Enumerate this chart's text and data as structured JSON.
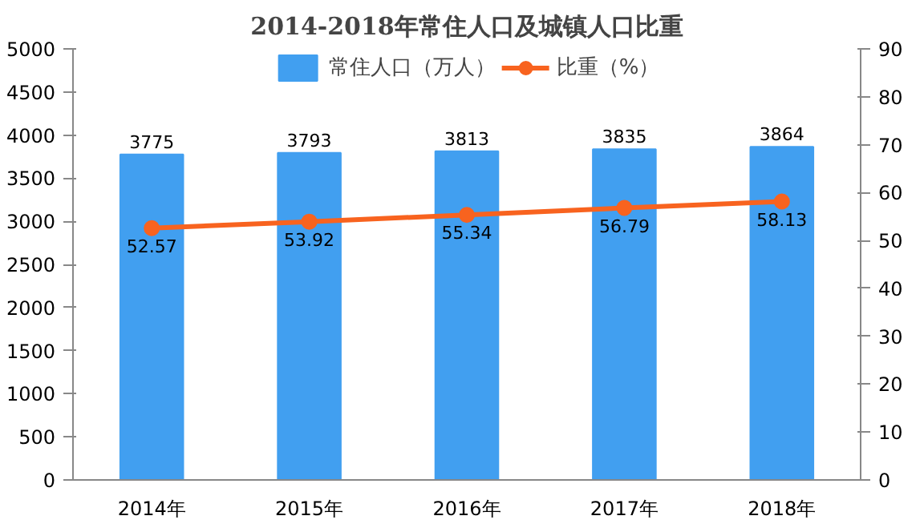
{
  "chart_data": {
    "type": "bar",
    "title": "2014-2018年常住人口及城镇人口比重",
    "categories": [
      "2014年",
      "2015年",
      "2016年",
      "2017年",
      "2018年"
    ],
    "series": [
      {
        "name": "常住人口（万人）",
        "color": "#419ff0",
        "values": [
          3775,
          3793,
          3813,
          3835,
          3864
        ]
      },
      {
        "name": "比重（%）",
        "type": "line",
        "axis": "y2",
        "color": "#f8631f",
        "marker": "circle",
        "values": [
          52.57,
          53.92,
          55.34,
          56.79,
          58.13
        ]
      }
    ],
    "ylim": [
      0,
      5000
    ],
    "yticks": [
      0,
      500,
      1000,
      1500,
      2000,
      2500,
      3000,
      3500,
      4000,
      4500,
      5000
    ],
    "y2lim": [
      0,
      90
    ],
    "y2ticks": [
      0,
      10,
      20,
      30,
      40,
      50,
      60,
      70,
      80,
      90
    ],
    "data_labels": true,
    "legend": "top",
    "grid": false
  }
}
